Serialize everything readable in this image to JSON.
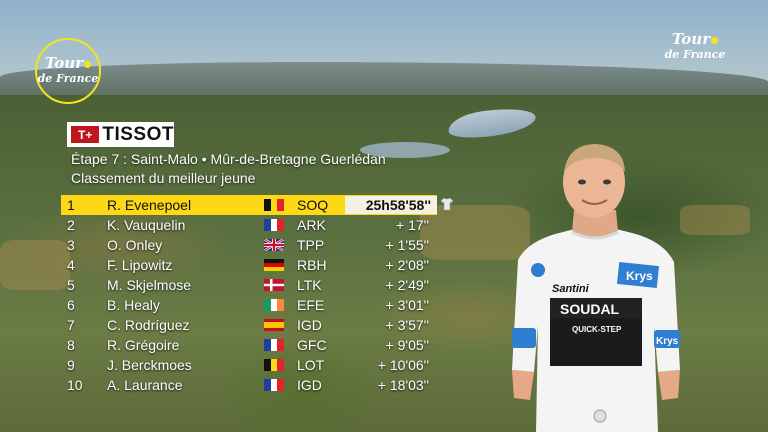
{
  "branding": {
    "logo_left_line1": "Tour",
    "logo_left_line2": "de France",
    "logo_right_line1": "Tour",
    "logo_right_line2": "de France",
    "sponsor_mark": "T+",
    "sponsor_name": "TISSOT",
    "accent_yellow": "#fcd817"
  },
  "header": {
    "stage": "Étape 7 : Saint-Malo • Mûr-de-Bretagne Guerlédan",
    "classification": "Classement du meilleur jeune"
  },
  "standings": [
    {
      "rank": "1",
      "name": "R. Evenepoel",
      "country": "BE",
      "team": "SOQ",
      "time": "25h58'58''"
    },
    {
      "rank": "2",
      "name": "K. Vauquelin",
      "country": "FR",
      "team": "ARK",
      "time": "+ 17''"
    },
    {
      "rank": "3",
      "name": "O. Onley",
      "country": "GB",
      "team": "TPP",
      "time": "+ 1'55''"
    },
    {
      "rank": "4",
      "name": "F. Lipowitz",
      "country": "DE",
      "team": "RBH",
      "time": "+ 2'08''"
    },
    {
      "rank": "5",
      "name": "M. Skjelmose",
      "country": "DK",
      "team": "LTK",
      "time": "+ 2'49''"
    },
    {
      "rank": "6",
      "name": "B. Healy",
      "country": "IE",
      "team": "EFE",
      "time": "+ 3'01''"
    },
    {
      "rank": "7",
      "name": "C. Rodríguez",
      "country": "ES",
      "team": "IGD",
      "time": "+ 3'57''"
    },
    {
      "rank": "8",
      "name": "R. Grégoire",
      "country": "FR",
      "team": "GFC",
      "time": "+ 9'05''"
    },
    {
      "rank": "9",
      "name": "J. Berckmoes",
      "country": "BE",
      "team": "LOT",
      "time": "+ 10'06''"
    },
    {
      "rank": "10",
      "name": "A. Laurance",
      "country": "FR",
      "team": "IGD",
      "time": "+ 18'03''"
    }
  ],
  "rider_jersey": {
    "sponsor_top": "Krys",
    "brand": "Santini",
    "team_main": "SOUDAL",
    "team_sub": "QUICK-STEP",
    "sleeve": "Krys"
  }
}
